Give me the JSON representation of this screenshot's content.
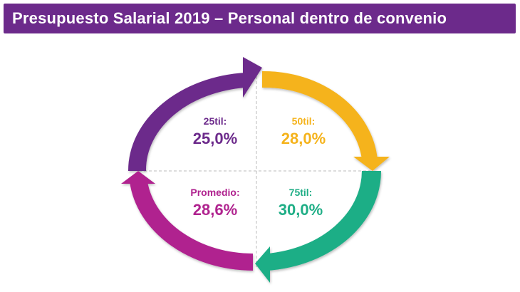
{
  "header": {
    "title": "Presupuesto Salarial 2019 – Personal dentro de convenio",
    "bg_color": "#6c2a8b"
  },
  "quadrants": [
    {
      "id": "p25",
      "label": "25til:",
      "value": "25,0%",
      "color": "#6c2a8b"
    },
    {
      "id": "p50",
      "label": "50til:",
      "value": "28,0%",
      "color": "#f5b31c"
    },
    {
      "id": "p75",
      "label": "75til:",
      "value": "30,0%",
      "color": "#1fae86"
    },
    {
      "id": "avg",
      "label": "Promedio:",
      "value": "28,6%",
      "color": "#b0238f"
    }
  ]
}
